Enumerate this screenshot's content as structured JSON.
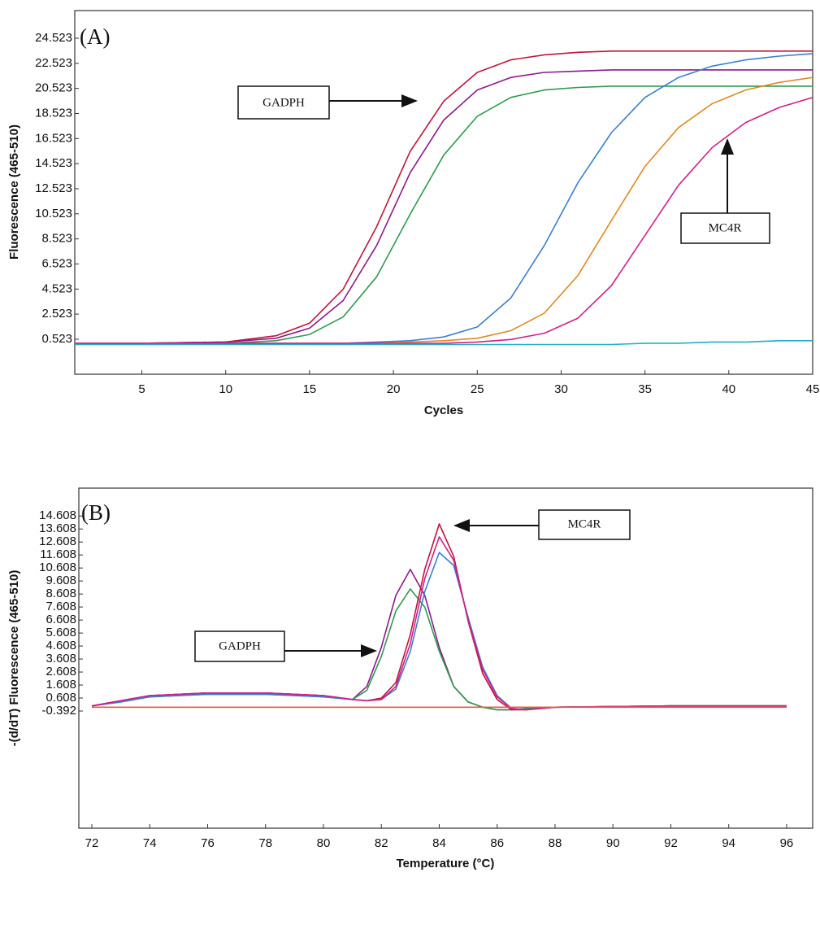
{
  "chart_data": [
    {
      "type": "line",
      "annotations": [
        "(A)",
        "GADPH",
        "MC4R"
      ],
      "x_label": "Cycles",
      "y_label": "Fluorescence (465-510)",
      "x": [
        1,
        5,
        10,
        13,
        15,
        17,
        19,
        21,
        23,
        25,
        27,
        29,
        31,
        33,
        35,
        37,
        39,
        41,
        43,
        45
      ],
      "xlim": [
        1,
        45
      ],
      "xticks": [
        5,
        10,
        15,
        20,
        25,
        30,
        35,
        40,
        45
      ],
      "ylim": [
        -2.27,
        26.73
      ],
      "yticks": [
        0.523,
        2.523,
        4.523,
        6.523,
        8.523,
        10.523,
        12.523,
        14.523,
        16.523,
        18.523,
        20.523,
        22.523,
        24.523
      ],
      "series": [
        {
          "color": "#c0143c",
          "values": [
            0.2,
            0.2,
            0.3,
            0.8,
            1.8,
            4.5,
            9.5,
            15.5,
            19.5,
            21.8,
            22.8,
            23.2,
            23.4,
            23.5,
            23.5,
            23.5,
            23.5,
            23.5,
            23.5,
            23.5
          ]
        },
        {
          "color": "#8b1a8b",
          "values": [
            0.2,
            0.2,
            0.3,
            0.6,
            1.4,
            3.6,
            8.0,
            13.8,
            18.0,
            20.4,
            21.4,
            21.8,
            21.9,
            22.0,
            22.0,
            22.0,
            22.0,
            22.0,
            22.0,
            22.0
          ]
        },
        {
          "color": "#2e9a4e",
          "values": [
            0.2,
            0.2,
            0.2,
            0.4,
            0.9,
            2.3,
            5.5,
            10.5,
            15.2,
            18.3,
            19.8,
            20.4,
            20.6,
            20.7,
            20.7,
            20.7,
            20.7,
            20.7,
            20.7,
            20.7
          ]
        },
        {
          "color": "#3a7fd0",
          "values": [
            0.2,
            0.2,
            0.2,
            0.2,
            0.2,
            0.2,
            0.3,
            0.4,
            0.7,
            1.5,
            3.8,
            8.0,
            13.0,
            17.0,
            19.8,
            21.4,
            22.3,
            22.8,
            23.1,
            23.3
          ]
        },
        {
          "color": "#e08a20",
          "values": [
            0.2,
            0.2,
            0.2,
            0.2,
            0.2,
            0.2,
            0.2,
            0.3,
            0.4,
            0.6,
            1.2,
            2.6,
            5.6,
            10.0,
            14.3,
            17.4,
            19.3,
            20.4,
            21.0,
            21.4
          ]
        },
        {
          "color": "#d0208a",
          "values": [
            0.2,
            0.2,
            0.2,
            0.2,
            0.2,
            0.2,
            0.2,
            0.2,
            0.2,
            0.3,
            0.5,
            1.0,
            2.2,
            4.8,
            8.8,
            12.8,
            15.8,
            17.8,
            19.0,
            19.8
          ]
        },
        {
          "color": "#20b0c0",
          "values": [
            0.1,
            0.1,
            0.1,
            0.1,
            0.1,
            0.1,
            0.1,
            0.1,
            0.1,
            0.1,
            0.1,
            0.1,
            0.1,
            0.1,
            0.2,
            0.2,
            0.3,
            0.3,
            0.4,
            0.4
          ]
        }
      ]
    },
    {
      "type": "line",
      "annotations": [
        "(B)",
        "GADPH",
        "MC4R"
      ],
      "x_label": "Temperature (°C)",
      "y_label": "-(d/dT) Fluorescence (465-510)",
      "x": [
        72,
        73,
        74,
        76,
        78,
        80,
        81,
        81.5,
        82,
        82.5,
        83,
        83.5,
        84,
        84.5,
        85,
        85.5,
        86,
        86.5,
        87,
        88,
        92,
        96
      ],
      "xlim": [
        71.55,
        96.9
      ],
      "xticks": [
        72,
        74,
        76,
        78,
        80,
        82,
        84,
        86,
        88,
        90,
        92,
        94,
        96
      ],
      "ylim": [
        -9.4,
        16.75
      ],
      "yticks": [
        -0.392,
        0.608,
        1.608,
        2.608,
        3.608,
        4.608,
        5.608,
        6.608,
        7.608,
        8.608,
        9.608,
        10.608,
        11.608,
        12.608,
        13.608,
        14.608
      ],
      "series": [
        {
          "color": "#8b1a8b",
          "values": [
            0,
            0.4,
            0.8,
            1,
            1,
            0.8,
            0.5,
            1.5,
            4.5,
            8.5,
            10.5,
            8.5,
            4.5,
            1.5,
            0.3,
            -0.1,
            -0.3,
            -0.3,
            -0.2,
            -0.1,
            0,
            0
          ]
        },
        {
          "color": "#2e9a4e",
          "values": [
            0,
            0.4,
            0.7,
            0.9,
            0.9,
            0.7,
            0.5,
            1.2,
            3.8,
            7.3,
            9.0,
            7.6,
            4.2,
            1.5,
            0.3,
            -0.1,
            -0.3,
            -0.3,
            -0.2,
            -0.1,
            0,
            0
          ]
        },
        {
          "color": "#c0143c",
          "values": [
            0,
            0.4,
            0.8,
            1,
            1,
            0.8,
            0.5,
            0.4,
            0.6,
            1.8,
            5.5,
            10.5,
            14.0,
            11.5,
            6.5,
            2.5,
            0.5,
            -0.3,
            -0.3,
            -0.1,
            0,
            0
          ]
        },
        {
          "color": "#3a7fd0",
          "values": [
            0,
            0.3,
            0.7,
            0.9,
            0.9,
            0.7,
            0.5,
            0.4,
            0.5,
            1.3,
            4.2,
            8.8,
            11.8,
            10.8,
            6.8,
            3.0,
            0.8,
            -0.2,
            -0.3,
            -0.1,
            0,
            0
          ]
        },
        {
          "color": "#d0208a",
          "values": [
            0,
            0.4,
            0.8,
            1,
            1,
            0.8,
            0.5,
            0.4,
            0.5,
            1.5,
            4.8,
            9.8,
            13.0,
            11.2,
            6.6,
            2.8,
            0.7,
            -0.2,
            -0.3,
            -0.1,
            0,
            0
          ]
        },
        {
          "color": "#e06040",
          "values": [
            -0.1,
            -0.1,
            -0.1,
            -0.1,
            -0.1,
            -0.1,
            -0.1,
            -0.1,
            -0.1,
            -0.1,
            -0.1,
            -0.1,
            -0.1,
            -0.1,
            -0.1,
            -0.1,
            -0.1,
            -0.1,
            -0.1,
            -0.1,
            -0.1,
            -0.1
          ]
        }
      ]
    }
  ]
}
